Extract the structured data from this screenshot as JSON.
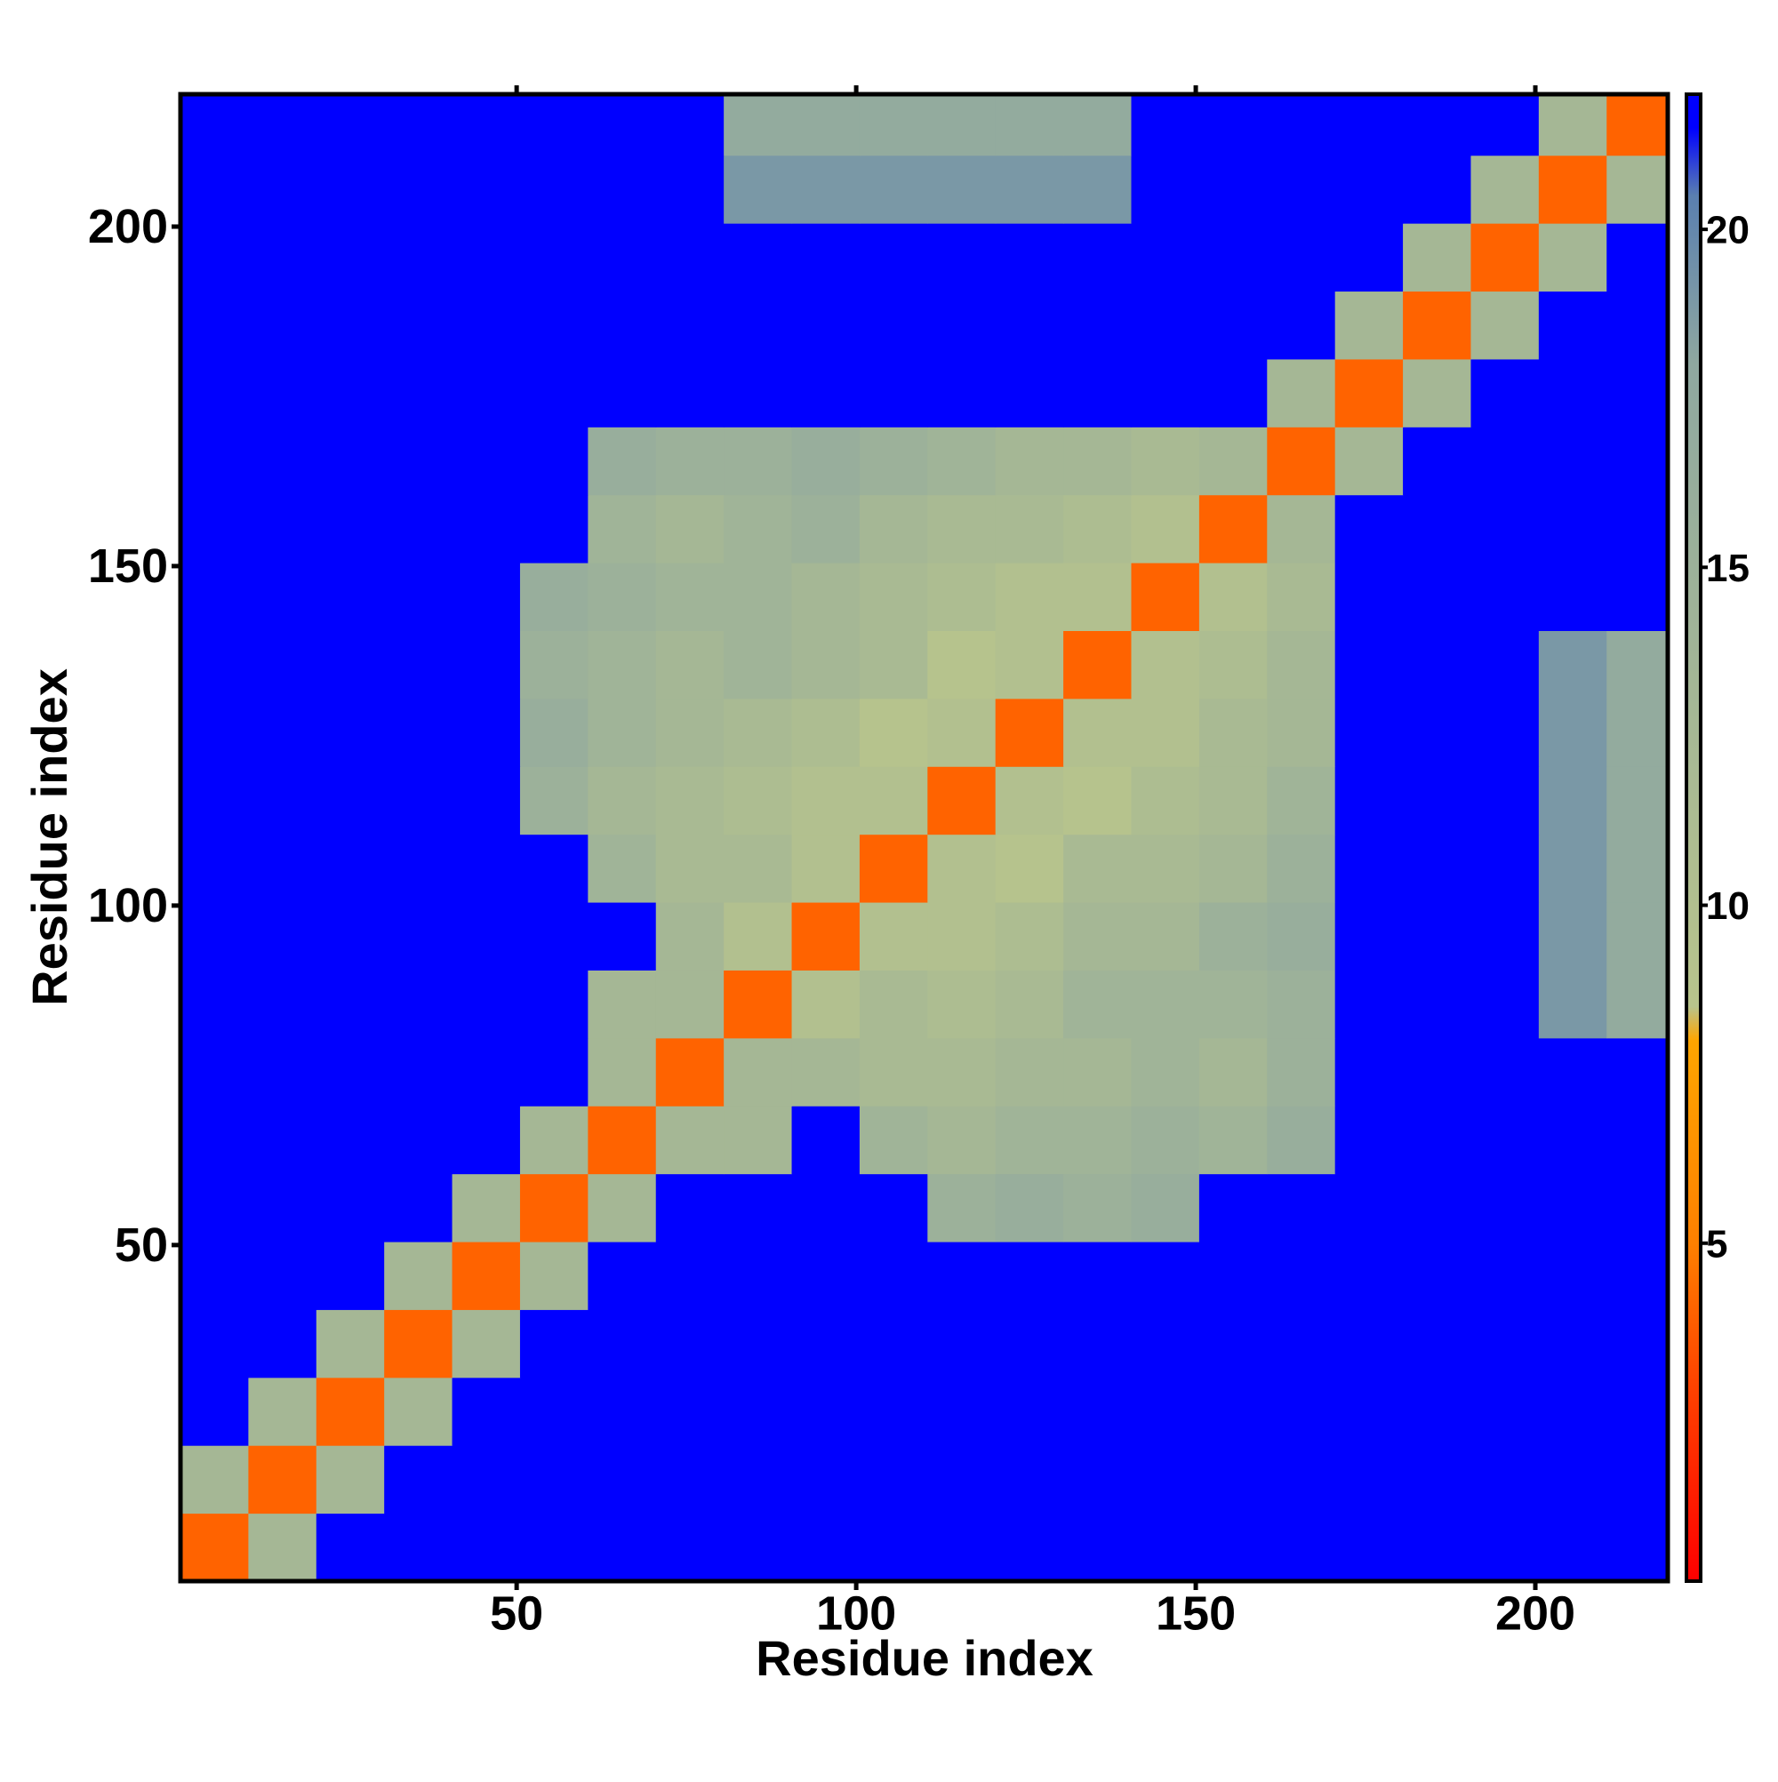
{
  "chart_data": {
    "type": "heatmap",
    "x_label": "Residue index",
    "y_label": "Residue index",
    "xlim": [
      0.5,
      219.5
    ],
    "ylim": [
      0.5,
      219.5
    ],
    "xticks": [
      50,
      100,
      150,
      200
    ],
    "yticks": [
      50,
      100,
      150,
      200
    ],
    "zlim": [
      0,
      22
    ],
    "zticks": [
      5,
      10,
      15,
      20
    ],
    "colorscale": [
      {
        "value": 0,
        "color": "#ff0000"
      },
      {
        "value": 3,
        "color": "#ff4500"
      },
      {
        "value": 5,
        "color": "#ff8000"
      },
      {
        "value": 8,
        "color": "#ffa500"
      },
      {
        "value": 8.5,
        "color": "#b8c48c"
      },
      {
        "value": 18,
        "color": "#8fa8a0"
      },
      {
        "value": 20.5,
        "color": "#5a7fb0"
      },
      {
        "value": 21.5,
        "color": "#0000ff"
      },
      {
        "value": 22,
        "color": "#0000ff"
      }
    ],
    "x_bins": [
      0.5,
      10.5,
      20.5,
      30.5,
      40.5,
      50.5,
      60.5,
      70.5,
      80.5,
      90.5,
      100.5,
      110.5,
      120.5,
      130.5,
      140.5,
      150.5,
      160.5,
      170.5,
      180.5,
      190.5,
      200.5,
      210.5,
      219.5
    ],
    "y_bins": [
      0.5,
      10.5,
      20.5,
      30.5,
      40.5,
      50.5,
      60.5,
      70.5,
      80.5,
      90.5,
      100.5,
      110.5,
      120.5,
      130.5,
      140.5,
      150.5,
      160.5,
      170.5,
      180.5,
      190.5,
      200.5,
      210.5,
      219.5
    ],
    "z": [
      [
        4,
        13,
        22,
        22,
        22,
        22,
        22,
        22,
        22,
        22,
        22,
        22,
        22,
        22,
        22,
        22,
        22,
        22,
        22,
        22,
        22,
        22
      ],
      [
        13,
        4,
        13,
        22,
        22,
        22,
        22,
        22,
        22,
        22,
        22,
        22,
        22,
        22,
        22,
        22,
        22,
        22,
        22,
        22,
        22,
        22
      ],
      [
        22,
        13,
        4,
        13,
        22,
        22,
        22,
        22,
        22,
        22,
        22,
        22,
        22,
        22,
        22,
        22,
        22,
        22,
        22,
        22,
        22,
        22
      ],
      [
        22,
        22,
        13,
        4,
        13,
        22,
        22,
        22,
        22,
        22,
        22,
        22,
        22,
        22,
        22,
        22,
        22,
        22,
        22,
        22,
        22,
        22
      ],
      [
        22,
        22,
        22,
        13,
        4,
        13,
        22,
        22,
        22,
        22,
        22,
        22,
        22,
        22,
        22,
        22,
        22,
        22,
        22,
        22,
        22,
        22
      ],
      [
        22,
        22,
        22,
        22,
        13,
        4,
        13,
        22,
        22,
        22,
        22,
        15,
        16,
        15,
        16,
        22,
        22,
        22,
        22,
        22,
        22,
        22
      ],
      [
        22,
        22,
        22,
        22,
        22,
        13,
        4,
        13,
        13,
        22,
        14,
        13,
        14,
        14,
        15,
        14,
        16,
        22,
        22,
        22,
        22,
        22
      ],
      [
        22,
        22,
        22,
        22,
        22,
        22,
        13,
        4,
        13,
        13,
        12,
        12,
        13,
        13,
        14,
        13,
        15,
        22,
        22,
        22,
        22,
        22
      ],
      [
        22,
        22,
        22,
        22,
        22,
        22,
        13,
        13,
        4,
        10,
        12,
        11,
        12,
        14,
        14,
        14,
        15,
        22,
        22,
        22,
        19,
        17
      ],
      [
        22,
        22,
        22,
        22,
        22,
        22,
        22,
        13,
        10,
        4,
        10,
        10,
        11,
        13,
        13,
        15,
        16,
        22,
        22,
        22,
        19,
        17
      ],
      [
        22,
        22,
        22,
        22,
        22,
        22,
        14,
        12,
        12,
        10,
        4,
        10,
        9,
        12,
        12,
        13,
        15,
        22,
        22,
        22,
        19,
        17
      ],
      [
        22,
        22,
        22,
        22,
        22,
        15,
        13,
        12,
        11,
        10,
        10,
        4,
        10,
        9,
        11,
        12,
        14,
        22,
        22,
        22,
        19,
        17
      ],
      [
        22,
        22,
        22,
        22,
        22,
        16,
        14,
        13,
        12,
        11,
        9,
        10,
        4,
        10,
        10,
        12,
        13,
        22,
        22,
        22,
        19,
        17
      ],
      [
        22,
        22,
        22,
        22,
        22,
        15,
        14,
        13,
        14,
        13,
        12,
        9,
        10,
        4,
        10,
        11,
        13,
        22,
        22,
        22,
        19,
        17
      ],
      [
        22,
        22,
        22,
        22,
        22,
        16,
        15,
        14,
        14,
        13,
        12,
        11,
        10,
        10,
        4,
        10,
        12,
        22,
        22,
        22,
        22,
        22
      ],
      [
        22,
        22,
        22,
        22,
        22,
        22,
        14,
        13,
        14,
        15,
        13,
        12,
        12,
        11,
        10,
        4,
        13,
        22,
        22,
        22,
        22,
        22
      ],
      [
        22,
        22,
        22,
        22,
        22,
        22,
        16,
        15,
        15,
        16,
        15,
        14,
        13,
        13,
        12,
        13,
        4,
        13,
        22,
        22,
        22,
        22
      ],
      [
        22,
        22,
        22,
        22,
        22,
        22,
        22,
        22,
        22,
        22,
        22,
        22,
        22,
        22,
        22,
        22,
        13,
        4,
        13,
        22,
        22,
        22
      ],
      [
        22,
        22,
        22,
        22,
        22,
        22,
        22,
        22,
        22,
        22,
        22,
        22,
        22,
        22,
        22,
        22,
        22,
        13,
        4,
        13,
        22,
        22
      ],
      [
        22,
        22,
        22,
        22,
        22,
        22,
        22,
        22,
        22,
        22,
        22,
        22,
        22,
        22,
        22,
        22,
        22,
        22,
        13,
        4,
        13,
        22
      ],
      [
        22,
        22,
        22,
        22,
        22,
        22,
        22,
        22,
        19,
        19,
        19,
        19,
        19,
        19,
        22,
        22,
        22,
        22,
        22,
        13,
        4,
        13
      ],
      [
        22,
        22,
        22,
        22,
        22,
        22,
        22,
        22,
        17,
        17,
        17,
        17,
        17,
        17,
        22,
        22,
        22,
        22,
        22,
        22,
        13,
        4
      ]
    ]
  }
}
